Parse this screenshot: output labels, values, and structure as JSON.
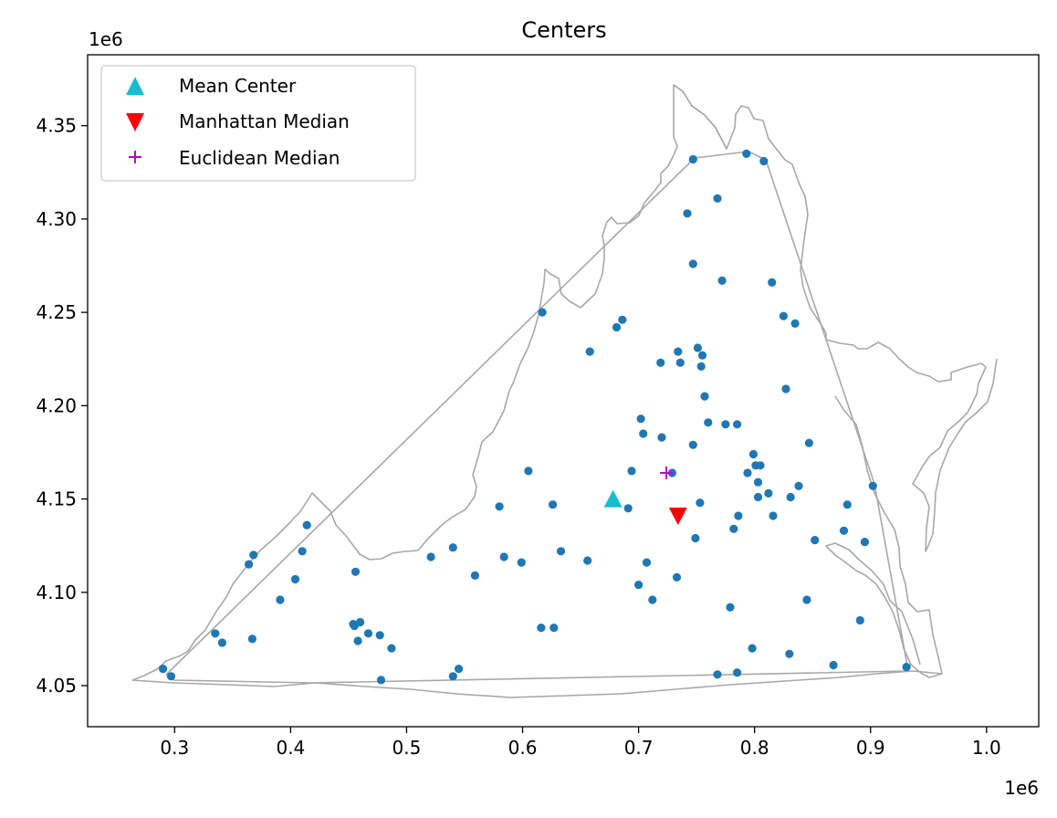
{
  "chart_data": {
    "type": "scatter",
    "title": "Centers",
    "xlabel": "",
    "ylabel": "",
    "x_offset_label": "1e6",
    "y_offset_label": "1e6",
    "xlim": [
      0.225,
      1.045
    ],
    "ylim": [
      4.028,
      4.388
    ],
    "x_ticks": [
      0.3,
      0.4,
      0.5,
      0.6,
      0.7,
      0.8,
      0.9,
      1.0
    ],
    "x_tick_labels": [
      "0.3",
      "0.4",
      "0.5",
      "0.6",
      "0.7",
      "0.8",
      "0.9",
      "1.0"
    ],
    "y_ticks": [
      4.05,
      4.1,
      4.15,
      4.2,
      4.25,
      4.3,
      4.35
    ],
    "y_tick_labels": [
      "4.05",
      "4.10",
      "4.15",
      "4.20",
      "4.25",
      "4.30",
      "4.35"
    ],
    "grid": false,
    "legend_position": "upper-left",
    "colors": {
      "points": "#1f77b4",
      "mean_center": "#17becf",
      "manhattan_median": "#ff0000",
      "euclidean_median": "#bf00bf",
      "outline": "#a0a0a0"
    },
    "legend": [
      {
        "label": "Mean Center",
        "marker": "triangle-up",
        "color": "#17becf"
      },
      {
        "label": "Manhattan Median",
        "marker": "triangle-down",
        "color": "#ff0000"
      },
      {
        "label": "Euclidean Median",
        "marker": "plus",
        "color": "#bf00bf"
      }
    ],
    "centers": {
      "mean_center": [
        0.678,
        4.15
      ],
      "manhattan_median": [
        0.734,
        4.141
      ],
      "euclidean_median": [
        0.724,
        4.164
      ]
    },
    "points": [
      [
        0.747,
        4.332
      ],
      [
        0.793,
        4.335
      ],
      [
        0.808,
        4.331
      ],
      [
        0.768,
        4.311
      ],
      [
        0.742,
        4.303
      ],
      [
        0.747,
        4.276
      ],
      [
        0.772,
        4.267
      ],
      [
        0.815,
        4.266
      ],
      [
        0.617,
        4.25
      ],
      [
        0.686,
        4.246
      ],
      [
        0.681,
        4.242
      ],
      [
        0.825,
        4.248
      ],
      [
        0.835,
        4.244
      ],
      [
        0.658,
        4.229
      ],
      [
        0.751,
        4.231
      ],
      [
        0.734,
        4.229
      ],
      [
        0.755,
        4.227
      ],
      [
        0.719,
        4.223
      ],
      [
        0.736,
        4.223
      ],
      [
        0.754,
        4.221
      ],
      [
        0.827,
        4.209
      ],
      [
        0.757,
        4.205
      ],
      [
        0.702,
        4.193
      ],
      [
        0.76,
        4.191
      ],
      [
        0.775,
        4.19
      ],
      [
        0.785,
        4.19
      ],
      [
        0.704,
        4.185
      ],
      [
        0.72,
        4.183
      ],
      [
        0.847,
        4.18
      ],
      [
        0.747,
        4.179
      ],
      [
        0.799,
        4.174
      ],
      [
        0.801,
        4.168
      ],
      [
        0.805,
        4.168
      ],
      [
        0.605,
        4.165
      ],
      [
        0.694,
        4.165
      ],
      [
        0.729,
        4.164
      ],
      [
        0.794,
        4.164
      ],
      [
        0.803,
        4.159
      ],
      [
        0.902,
        4.157
      ],
      [
        0.838,
        4.157
      ],
      [
        0.812,
        4.153
      ],
      [
        0.803,
        4.151
      ],
      [
        0.831,
        4.151
      ],
      [
        0.753,
        4.148
      ],
      [
        0.58,
        4.146
      ],
      [
        0.626,
        4.147
      ],
      [
        0.691,
        4.145
      ],
      [
        0.88,
        4.147
      ],
      [
        0.786,
        4.141
      ],
      [
        0.816,
        4.141
      ],
      [
        0.414,
        4.136
      ],
      [
        0.782,
        4.134
      ],
      [
        0.877,
        4.133
      ],
      [
        0.749,
        4.129
      ],
      [
        0.852,
        4.128
      ],
      [
        0.895,
        4.127
      ],
      [
        0.54,
        4.124
      ],
      [
        0.41,
        4.122
      ],
      [
        0.633,
        4.122
      ],
      [
        0.368,
        4.12
      ],
      [
        0.521,
        4.119
      ],
      [
        0.584,
        4.119
      ],
      [
        0.599,
        4.116
      ],
      [
        0.656,
        4.117
      ],
      [
        0.707,
        4.116
      ],
      [
        0.364,
        4.115
      ],
      [
        0.456,
        4.111
      ],
      [
        0.559,
        4.109
      ],
      [
        0.733,
        4.108
      ],
      [
        0.404,
        4.107
      ],
      [
        0.7,
        4.104
      ],
      [
        0.391,
        4.096
      ],
      [
        0.712,
        4.096
      ],
      [
        0.845,
        4.096
      ],
      [
        0.779,
        4.092
      ],
      [
        0.46,
        4.084
      ],
      [
        0.891,
        4.085
      ],
      [
        0.454,
        4.083
      ],
      [
        0.455,
        4.082
      ],
      [
        0.616,
        4.081
      ],
      [
        0.627,
        4.081
      ],
      [
        0.335,
        4.078
      ],
      [
        0.467,
        4.078
      ],
      [
        0.477,
        4.077
      ],
      [
        0.367,
        4.075
      ],
      [
        0.341,
        4.073
      ],
      [
        0.458,
        4.074
      ],
      [
        0.487,
        4.07
      ],
      [
        0.798,
        4.07
      ],
      [
        0.83,
        4.067
      ],
      [
        0.868,
        4.061
      ],
      [
        0.29,
        4.059
      ],
      [
        0.545,
        4.059
      ],
      [
        0.931,
        4.06
      ],
      [
        0.768,
        4.056
      ],
      [
        0.785,
        4.057
      ],
      [
        0.297,
        4.055
      ],
      [
        0.54,
        4.055
      ],
      [
        0.478,
        4.053
      ]
    ]
  }
}
